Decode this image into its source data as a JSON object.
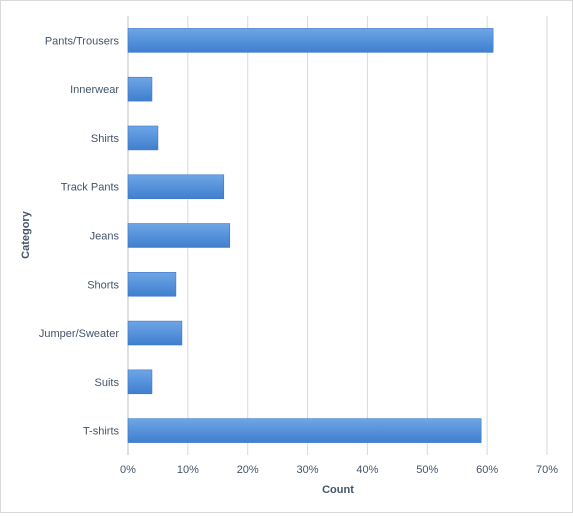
{
  "chart_data": {
    "type": "bar",
    "orientation": "horizontal",
    "categories": [
      "Pants/Trousers",
      "Innerwear",
      "Shirts",
      "Track Pants",
      "Jeans",
      "Shorts",
      "Jumper/Sweater",
      "Suits",
      "T-shirts"
    ],
    "values": [
      0.61,
      0.04,
      0.05,
      0.16,
      0.17,
      0.08,
      0.09,
      0.04,
      0.59
    ],
    "xlabel": "Count",
    "ylabel": "Category",
    "xlim": [
      0,
      0.7
    ],
    "xticks": [
      "0%",
      "10%",
      "20%",
      "30%",
      "40%",
      "50%",
      "60%",
      "70%"
    ],
    "grid": "vertical",
    "bar_color": "#4a8ad6"
  }
}
